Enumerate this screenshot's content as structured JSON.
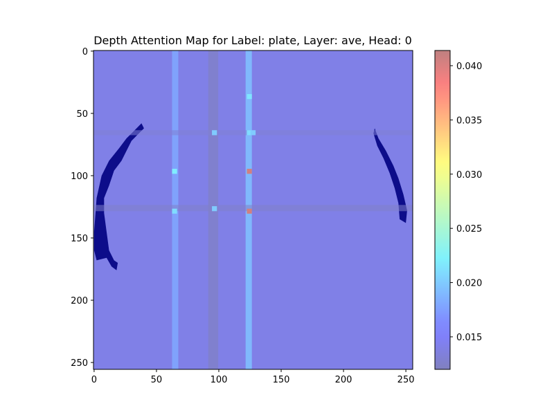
{
  "chart_data": {
    "type": "heatmap",
    "title": "Depth Attention Map for Label: plate, Layer: ave, Head: 0",
    "xlabel": "",
    "ylabel": "",
    "xlim": [
      0,
      255
    ],
    "ylim": [
      255,
      0
    ],
    "x_ticks": [
      0,
      50,
      100,
      150,
      200,
      250
    ],
    "y_ticks": [
      0,
      50,
      100,
      150,
      200,
      250
    ],
    "colormap": "jet",
    "alpha": 0.5,
    "base_value": 0.014,
    "vertical_bands": [
      {
        "x": [
          63,
          68
        ],
        "value": 0.018
      },
      {
        "x": [
          92,
          100
        ],
        "value": 0.0125
      },
      {
        "x": [
          122,
          127
        ],
        "value": 0.0195
      }
    ],
    "horizontal_bands": [
      {
        "y": [
          64,
          68
        ],
        "value": 0.013
      },
      {
        "y": [
          124,
          129
        ],
        "value": 0.0125
      }
    ],
    "hot_cells": [
      {
        "x": 125,
        "y": 97,
        "value": 0.0405
      },
      {
        "x": 125,
        "y": 129,
        "value": 0.0405
      },
      {
        "x": 65,
        "y": 97,
        "value": 0.022
      },
      {
        "x": 65,
        "y": 129,
        "value": 0.021
      },
      {
        "x": 125,
        "y": 37,
        "value": 0.0215
      },
      {
        "x": 97,
        "y": 66,
        "value": 0.02
      },
      {
        "x": 97,
        "y": 127,
        "value": 0.02
      },
      {
        "x": 125,
        "y": 66,
        "value": 0.021
      },
      {
        "x": 128,
        "y": 66,
        "value": 0.02
      }
    ],
    "depth_regions": [
      {
        "name": "left arc",
        "points": [
          [
            0,
            145
          ],
          [
            2,
            118
          ],
          [
            6,
            100
          ],
          [
            12,
            88
          ],
          [
            20,
            78
          ],
          [
            26,
            70
          ],
          [
            32,
            64
          ],
          [
            38,
            58
          ],
          [
            40,
            62
          ],
          [
            36,
            66
          ],
          [
            30,
            72
          ],
          [
            26,
            80
          ],
          [
            22,
            88
          ],
          [
            16,
            96
          ],
          [
            12,
            108
          ],
          [
            8,
            118
          ],
          [
            8,
            130
          ],
          [
            10,
            145
          ],
          [
            12,
            160
          ],
          [
            16,
            168
          ],
          [
            19,
            170
          ],
          [
            18,
            176
          ],
          [
            14,
            173
          ],
          [
            10,
            166
          ],
          [
            2,
            168
          ],
          [
            0,
            160
          ]
        ]
      },
      {
        "name": "right arc",
        "points": [
          [
            225,
            62
          ],
          [
            228,
            70
          ],
          [
            234,
            80
          ],
          [
            240,
            92
          ],
          [
            244,
            102
          ],
          [
            248,
            115
          ],
          [
            251,
            128
          ],
          [
            250,
            138
          ],
          [
            245,
            135
          ],
          [
            244,
            122
          ],
          [
            241,
            110
          ],
          [
            237,
            98
          ],
          [
            232,
            86
          ],
          [
            227,
            76
          ],
          [
            224,
            66
          ]
        ]
      }
    ],
    "colorbar": {
      "min": 0.012,
      "max": 0.0414,
      "ticks": [
        0.015,
        0.02,
        0.025,
        0.03,
        0.035,
        0.04
      ],
      "tick_labels": [
        "0.015",
        "0.020",
        "0.025",
        "0.030",
        "0.035",
        "0.040"
      ]
    },
    "colors": {
      "depth_fill": "#000080",
      "axis": "#000000"
    }
  }
}
